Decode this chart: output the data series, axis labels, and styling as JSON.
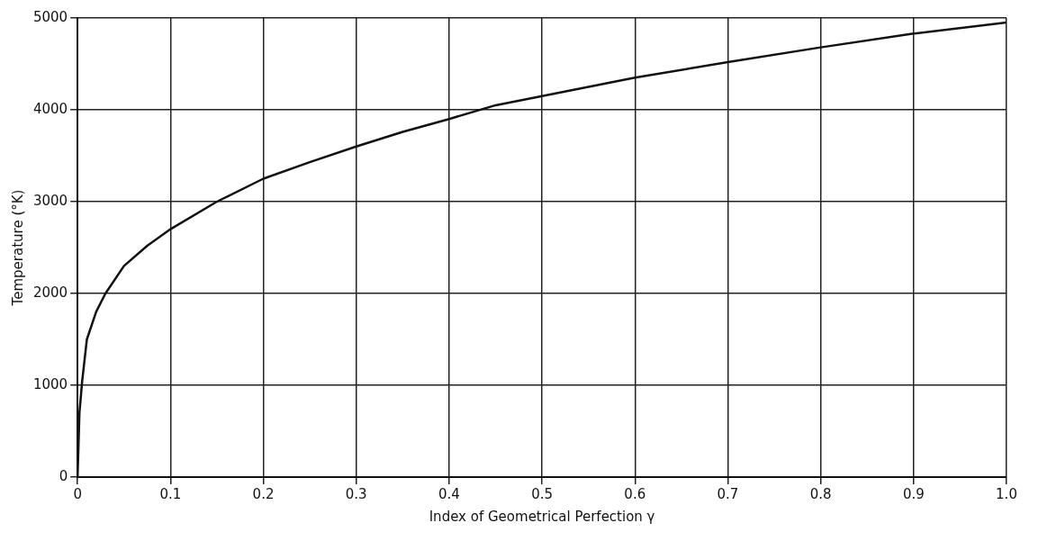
{
  "chart_data": {
    "type": "line",
    "xlabel": "Index of Geometrical Perfection γ",
    "ylabel": "Temperature (°K)",
    "x": [
      0,
      0.002,
      0.005,
      0.01,
      0.02,
      0.03,
      0.05,
      0.075,
      0.1,
      0.15,
      0.2,
      0.25,
      0.3,
      0.35,
      0.4,
      0.45,
      0.5,
      0.6,
      0.7,
      0.8,
      0.9,
      1.0
    ],
    "series": [
      {
        "color": "#111111",
        "values": [
          0,
          700,
          1050,
          1500,
          1800,
          2000,
          2300,
          2520,
          2700,
          3000,
          3250,
          3430,
          3600,
          3760,
          3900,
          4050,
          4150,
          4350,
          4520,
          4680,
          4830,
          4950
        ]
      }
    ],
    "xlim": [
      0,
      1
    ],
    "xticks": [
      0,
      0.1,
      0.2,
      0.3,
      0.4,
      0.5,
      0.6,
      0.7,
      0.8,
      0.9,
      {
        "value": 1,
        "label": "1.0"
      }
    ],
    "ylim": [
      0,
      5000
    ],
    "yticks": [
      0,
      1000,
      2000,
      3000,
      4000,
      5000
    ],
    "grid": true,
    "legend": false,
    "marker": "none",
    "line_style": "solid"
  }
}
